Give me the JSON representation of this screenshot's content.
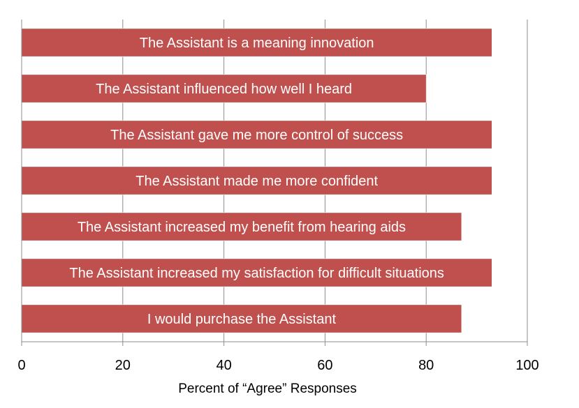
{
  "chart_data": {
    "type": "bar",
    "orientation": "horizontal",
    "categories": [
      "The Assistant is a meaning innovation",
      "The Assistant influenced how well I heard",
      "The Assistant gave me more control of success",
      "The Assistant made me more confident",
      "The Assistant increased my benefit from hearing aids",
      "The Assistant increased my satisfaction for difficult situations",
      "I would purchase the Assistant"
    ],
    "values": [
      93,
      80,
      93,
      93,
      87,
      93,
      87
    ],
    "xlabel": "Percent of “Agree” Responses",
    "ylabel": "",
    "xlim": [
      0,
      100
    ],
    "xticks": [
      0,
      20,
      40,
      60,
      80,
      100
    ],
    "grid": true,
    "legend": "none",
    "labels_inside_bars": true,
    "bar_color": "#c0504d"
  }
}
